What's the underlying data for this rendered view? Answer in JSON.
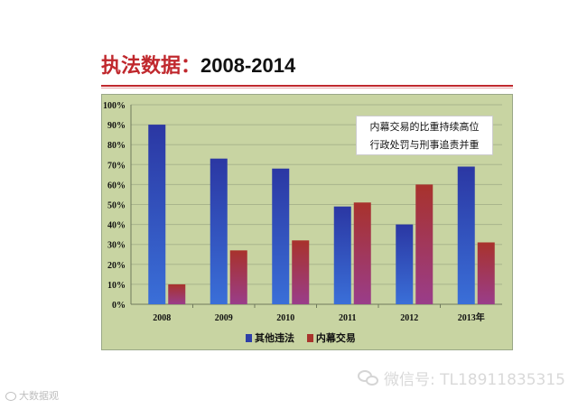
{
  "page": {
    "title_zh": "执法数据：",
    "title_years": "2008-2014",
    "annotation_lines": [
      "内幕交易的比重持续高位",
      "行政处罚与刑事追责并重"
    ],
    "watermark_text": "微信号: TL18911835315",
    "brand_text": "大数据观"
  },
  "chart_data": {
    "type": "bar",
    "categories": [
      "2008",
      "2009",
      "2010",
      "2011",
      "2012",
      "2013年"
    ],
    "series": [
      {
        "name": "其他违法",
        "values": [
          90,
          73,
          68,
          49,
          40,
          69
        ],
        "color": "#2e3fa8"
      },
      {
        "name": "内幕交易",
        "values": [
          10,
          27,
          32,
          51,
          60,
          31
        ],
        "color": "#a8342c"
      }
    ],
    "y_ticks": [
      "0%",
      "10%",
      "20%",
      "30%",
      "40%",
      "50%",
      "60%",
      "70%",
      "80%",
      "90%",
      "100%"
    ],
    "ylim": [
      0,
      100
    ],
    "grid": true,
    "legend_position": "bottom",
    "background_color": "#c8d4a2"
  }
}
